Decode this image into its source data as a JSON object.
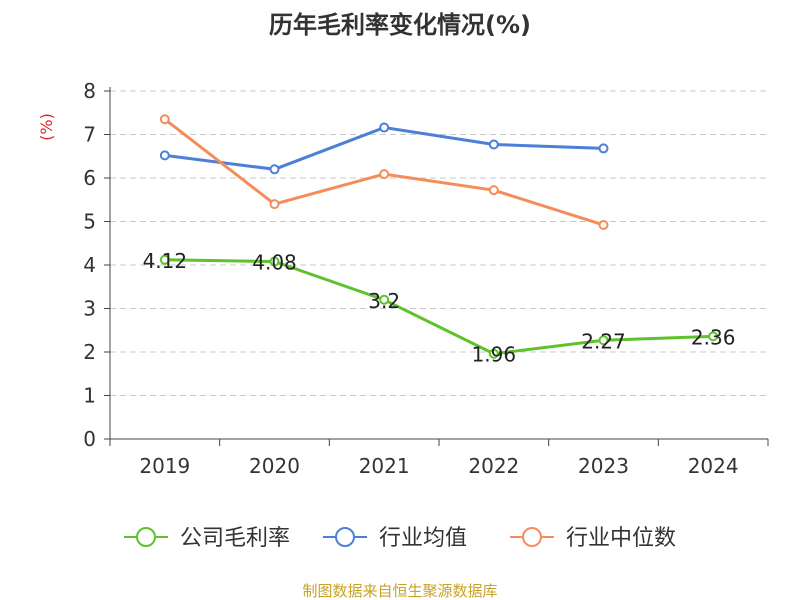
{
  "chart_data": {
    "type": "line",
    "title": "历年毛利率变化情况(%)",
    "ylabel": "(%)",
    "xlabel": "",
    "categories": [
      "2019",
      "2020",
      "2021",
      "2022",
      "2023",
      "2024"
    ],
    "ylim": [
      0,
      8
    ],
    "yticks": [
      0,
      1,
      2,
      3,
      4,
      5,
      6,
      7,
      8
    ],
    "grid": true,
    "legend_position": "bottom",
    "series": [
      {
        "name": "公司毛利率",
        "color": "#5ec22d",
        "values": [
          4.12,
          4.08,
          3.2,
          1.96,
          2.27,
          2.36
        ],
        "labels": [
          "4.12",
          "4.08",
          "3.2",
          "1.96",
          "2.27",
          "2.36"
        ]
      },
      {
        "name": "行业均值",
        "color": "#4c7fd8",
        "values": [
          6.52,
          6.2,
          7.16,
          6.77,
          6.68,
          null
        ]
      },
      {
        "name": "行业中位数",
        "color": "#f58d5a",
        "values": [
          7.35,
          5.4,
          6.09,
          5.72,
          4.92,
          null
        ]
      }
    ]
  },
  "colors": {
    "ylabel": "#d9262b",
    "source": "#c9a227",
    "axis": "#444444",
    "grid": "#c8c8c8"
  },
  "source": "制图数据来自恒生聚源数据库"
}
